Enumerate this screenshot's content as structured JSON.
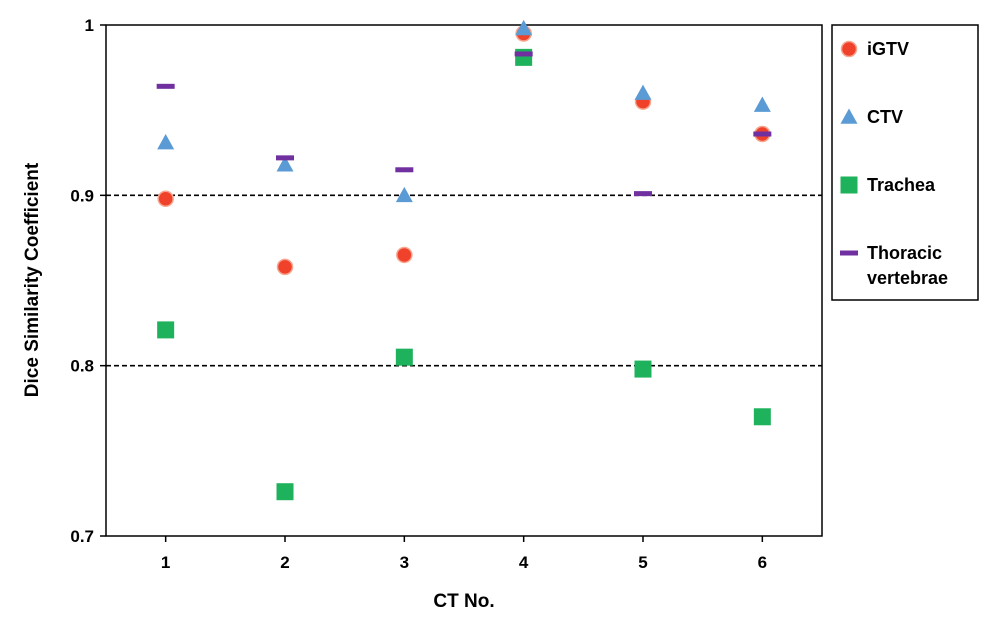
{
  "chart_data": {
    "type": "scatter",
    "title": "",
    "xlabel": "CT No.",
    "ylabel": "Dice Similarity Coefficient",
    "x": [
      1,
      2,
      3,
      4,
      5,
      6
    ],
    "xlim": [
      0.5,
      6.5
    ],
    "ylim": [
      0.7,
      1.0
    ],
    "y_ticks": [
      {
        "value": 0.7,
        "label": "0.7"
      },
      {
        "value": 0.8,
        "label": "0.8"
      },
      {
        "value": 0.9,
        "label": "0.9"
      },
      {
        "value": 1.0,
        "label": "1"
      }
    ],
    "x_ticks": [
      {
        "value": 1,
        "label": "1"
      },
      {
        "value": 2,
        "label": "2"
      },
      {
        "value": 3,
        "label": "3"
      },
      {
        "value": 4,
        "label": "4"
      },
      {
        "value": 5,
        "label": "5"
      },
      {
        "value": 6,
        "label": "6"
      }
    ],
    "reference_lines": [
      0.8,
      0.9
    ],
    "legend_position": "right",
    "series": [
      {
        "name": "iGTV",
        "legend_lines": [
          "iGTV"
        ],
        "marker": "circle",
        "color": "#f0412a",
        "values": [
          0.898,
          0.858,
          0.865,
          0.995,
          0.955,
          0.936
        ]
      },
      {
        "name": "CTV",
        "legend_lines": [
          "CTV"
        ],
        "marker": "triangle",
        "color": "#5b9bd5",
        "values": [
          0.931,
          0.918,
          0.9,
          0.998,
          0.96,
          0.953
        ]
      },
      {
        "name": "Trachea",
        "legend_lines": [
          "Trachea"
        ],
        "marker": "square",
        "color": "#1fb25c",
        "values": [
          0.821,
          0.726,
          0.805,
          0.981,
          0.798,
          0.77
        ]
      },
      {
        "name": "Thoracic vertebrae",
        "legend_lines": [
          "Thoracic",
          "vertebrae"
        ],
        "marker": "dash",
        "color": "#7030a0",
        "values": [
          0.964,
          0.922,
          0.915,
          0.983,
          0.901,
          0.936
        ]
      }
    ]
  }
}
